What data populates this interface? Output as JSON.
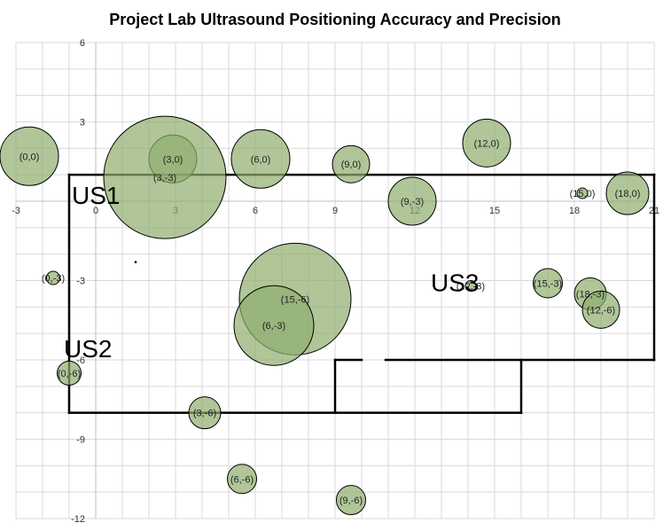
{
  "chart_data": {
    "type": "bubble",
    "title": "Project Lab Ultrasound Positioning Accuracy and Precision",
    "xlim": [
      -3,
      21
    ],
    "ylim": [
      -12,
      6
    ],
    "x_ticks": [
      -3,
      0,
      3,
      6,
      9,
      12,
      15,
      18,
      21
    ],
    "y_ticks": [
      6,
      3,
      0,
      -3,
      -6,
      -9,
      -12
    ],
    "grid": true,
    "bubble_color": "#8fae6e",
    "points": [
      {
        "label": "(0,0)",
        "x": -2.5,
        "y": 1.7,
        "r": 1.1
      },
      {
        "label": "(3,0)",
        "x": 2.9,
        "y": 1.6,
        "r": 0.9
      },
      {
        "label": "(3,-3)",
        "x": 2.6,
        "y": 0.9,
        "r": 2.3
      },
      {
        "label": "(6,0)",
        "x": 6.2,
        "y": 1.6,
        "r": 1.1
      },
      {
        "label": "(9,0)",
        "x": 9.6,
        "y": 1.4,
        "r": 0.7
      },
      {
        "label": "(12,0)",
        "x": 14.7,
        "y": 2.2,
        "r": 0.9
      },
      {
        "label": "(15,0)",
        "x": 18.3,
        "y": 0.3,
        "r": 0.2
      },
      {
        "label": "(18,0)",
        "x": 20.0,
        "y": 0.3,
        "r": 0.8
      },
      {
        "label": "(9,-3)",
        "x": 11.9,
        "y": 0.0,
        "r": 0.9
      },
      {
        "label": "(0,-3)",
        "x": -1.6,
        "y": -2.9,
        "r": 0.25
      },
      {
        "label": "(12,-3)",
        "x": 14.1,
        "y": -3.2,
        "r": 0.2
      },
      {
        "label": "(15,-3)",
        "x": 17.0,
        "y": -3.1,
        "r": 0.55
      },
      {
        "label": "(18,-3)",
        "x": 18.6,
        "y": -3.5,
        "r": 0.6
      },
      {
        "label": "(12,-6)",
        "x": 19.0,
        "y": -4.1,
        "r": 0.7
      },
      {
        "label": "(15,-6)",
        "x": 7.5,
        "y": -3.7,
        "r": 2.1
      },
      {
        "label": "(6,-3)",
        "x": 6.7,
        "y": -4.7,
        "r": 1.5
      },
      {
        "label": "(0,-6)",
        "x": -1.0,
        "y": -6.5,
        "r": 0.45
      },
      {
        "label": "(3,-6)",
        "x": 4.1,
        "y": -8.0,
        "r": 0.6
      },
      {
        "label": "(6,-6)",
        "x": 5.5,
        "y": -10.5,
        "r": 0.55
      },
      {
        "label": "(9,-6)",
        "x": 9.6,
        "y": -11.3,
        "r": 0.55
      }
    ],
    "rooms": [
      {
        "name": "US1",
        "x": -0.9,
        "y": -0.1
      },
      {
        "name": "US2",
        "x": -1.2,
        "y": -5.9
      },
      {
        "name": "US3",
        "x": 12.6,
        "y": -3.4
      }
    ]
  }
}
